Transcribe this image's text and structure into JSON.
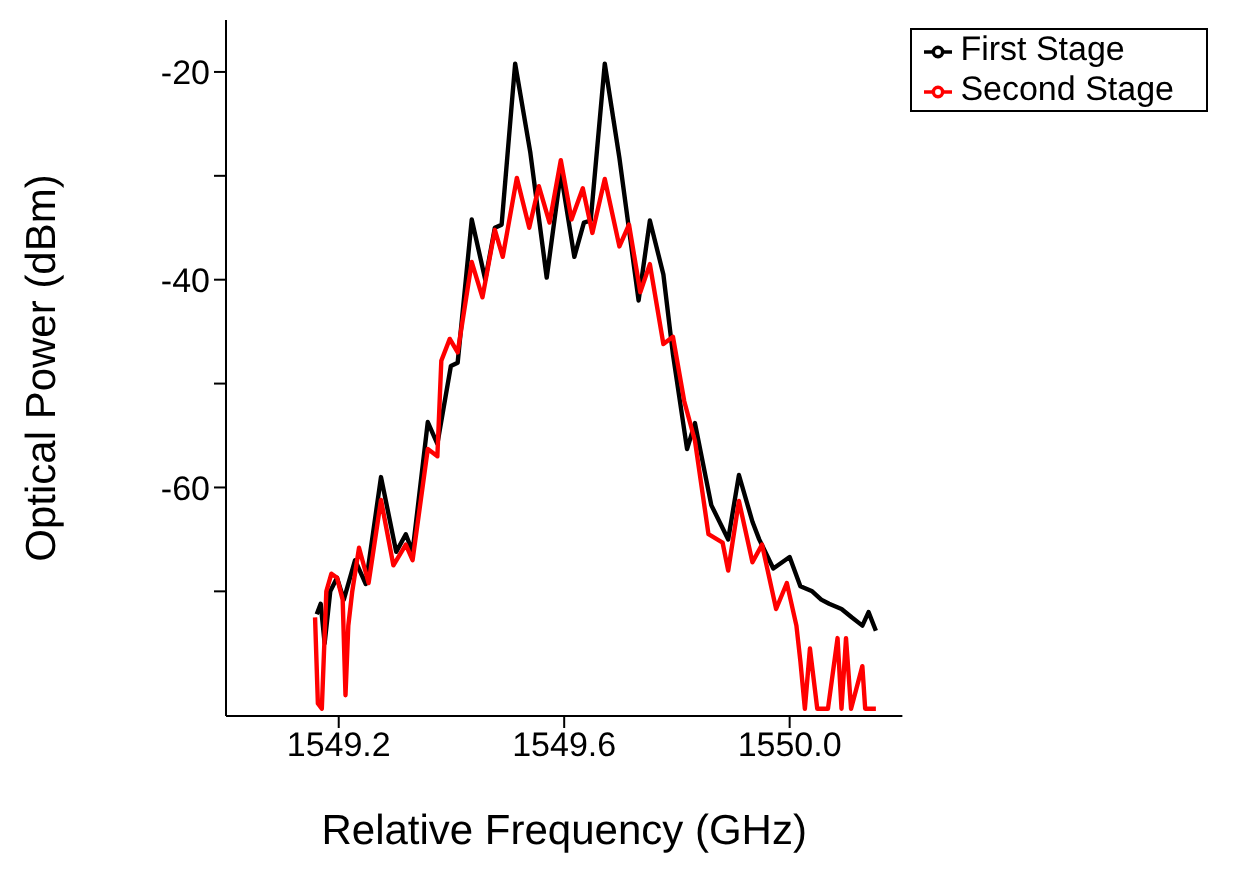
{
  "chart_data": {
    "type": "line",
    "xlabel": "Relative Frequency (GHz)",
    "ylabel": "Optical Power (dBm)",
    "xlim": [
      1549.0,
      1550.2
    ],
    "xticks": [
      1549.2,
      1549.6,
      {
        "value": 1550,
        "label": "1550.0"
      }
    ],
    "ylim": [
      -82,
      -15
    ],
    "yticks": [
      -20,
      {
        "value": -30,
        "label": null
      },
      -40,
      {
        "value": -50,
        "label": null
      },
      -60,
      {
        "value": -70,
        "label": null
      }
    ],
    "legend": "top right",
    "series": [
      {
        "name": "First Stage",
        "color": "#000000",
        "x": [
          1549.161,
          1549.168,
          1549.175,
          1549.185,
          1549.197,
          1549.209,
          1549.229,
          1549.248,
          1549.275,
          1549.302,
          1549.319,
          1549.331,
          1549.358,
          1549.375,
          1549.399,
          1549.411,
          1549.436,
          1549.46,
          1549.477,
          1549.489,
          1549.513,
          1549.54,
          1549.569,
          1549.594,
          1549.618,
          1549.635,
          1549.647,
          1549.672,
          1549.698,
          1549.732,
          1549.752,
          1549.776,
          1549.793,
          1549.818,
          1549.832,
          1549.861,
          1549.891,
          1549.91,
          1549.934,
          1549.946,
          1549.971,
          1550.0,
          1550.019,
          1550.04,
          1550.056,
          1550.07,
          1550.092,
          1550.11,
          1550.129,
          1550.14,
          1550.153
        ],
        "values": [
          -72.2,
          -71.2,
          -75,
          -70,
          -68.7,
          -70.8,
          -67,
          -69.3,
          -59,
          -66.2,
          -64.5,
          -66.2,
          -53.7,
          -55.8,
          -48.3,
          -48,
          -34.2,
          -40,
          -35,
          -34.7,
          -19.2,
          -27.8,
          -39.8,
          -29.7,
          -37.8,
          -34.5,
          -34.3,
          -19.2,
          -28.3,
          -42,
          -34.3,
          -39.5,
          -47.2,
          -56.3,
          -53.8,
          -61.7,
          -65,
          -58.8,
          -63.3,
          -65,
          -67.8,
          -66.7,
          -69.5,
          -70,
          -70.8,
          -71.2,
          -71.7,
          -72.5,
          -73.3,
          -72,
          -73.8
        ]
      },
      {
        "name": "Second Stage",
        "color": "#ff0000",
        "x": [
          1549.158,
          1549.163,
          1549.17,
          1549.178,
          1549.187,
          1549.197,
          1549.207,
          1549.212,
          1549.217,
          1549.224,
          1549.236,
          1549.253,
          1549.275,
          1549.297,
          1549.319,
          1549.331,
          1549.358,
          1549.375,
          1549.382,
          1549.397,
          1549.411,
          1549.436,
          1549.455,
          1549.477,
          1549.491,
          1549.516,
          1549.538,
          1549.555,
          1549.574,
          1549.594,
          1549.613,
          1549.633,
          1549.65,
          1549.672,
          1549.698,
          1549.715,
          1549.735,
          1549.752,
          1549.776,
          1549.793,
          1549.813,
          1549.832,
          1549.856,
          1549.881,
          1549.891,
          1549.91,
          1549.934,
          1549.951,
          1549.976,
          1549.995,
          1550.012,
          1550.019,
          1550.027,
          1550.036,
          1550.049,
          1550.068,
          1550.085,
          1550.092,
          1550.1,
          1550.109,
          1550.129,
          1550.134,
          1550.153
        ],
        "values": [
          -72.5,
          -80.8,
          -81.3,
          -70,
          -68.3,
          -68.7,
          -70.8,
          -80,
          -73.3,
          -70,
          -65.8,
          -69.2,
          -61.2,
          -67.5,
          -65.5,
          -67,
          -56.3,
          -57,
          -47.8,
          -45.7,
          -47,
          -38.3,
          -41.7,
          -35.2,
          -37.8,
          -30.2,
          -35,
          -31,
          -34.5,
          -28.5,
          -34.2,
          -31.2,
          -35.5,
          -30.3,
          -36.8,
          -34.7,
          -41.2,
          -38.5,
          -46.2,
          -45.5,
          -51.7,
          -55.5,
          -64.5,
          -65.3,
          -68,
          -61.3,
          -67.2,
          -65.5,
          -71.7,
          -69.2,
          -73.3,
          -76.7,
          -81.3,
          -75.5,
          -81.3,
          -81.3,
          -74.5,
          -81.3,
          -74.5,
          -81.3,
          -77.2,
          -81.3,
          -81.3
        ]
      }
    ]
  }
}
